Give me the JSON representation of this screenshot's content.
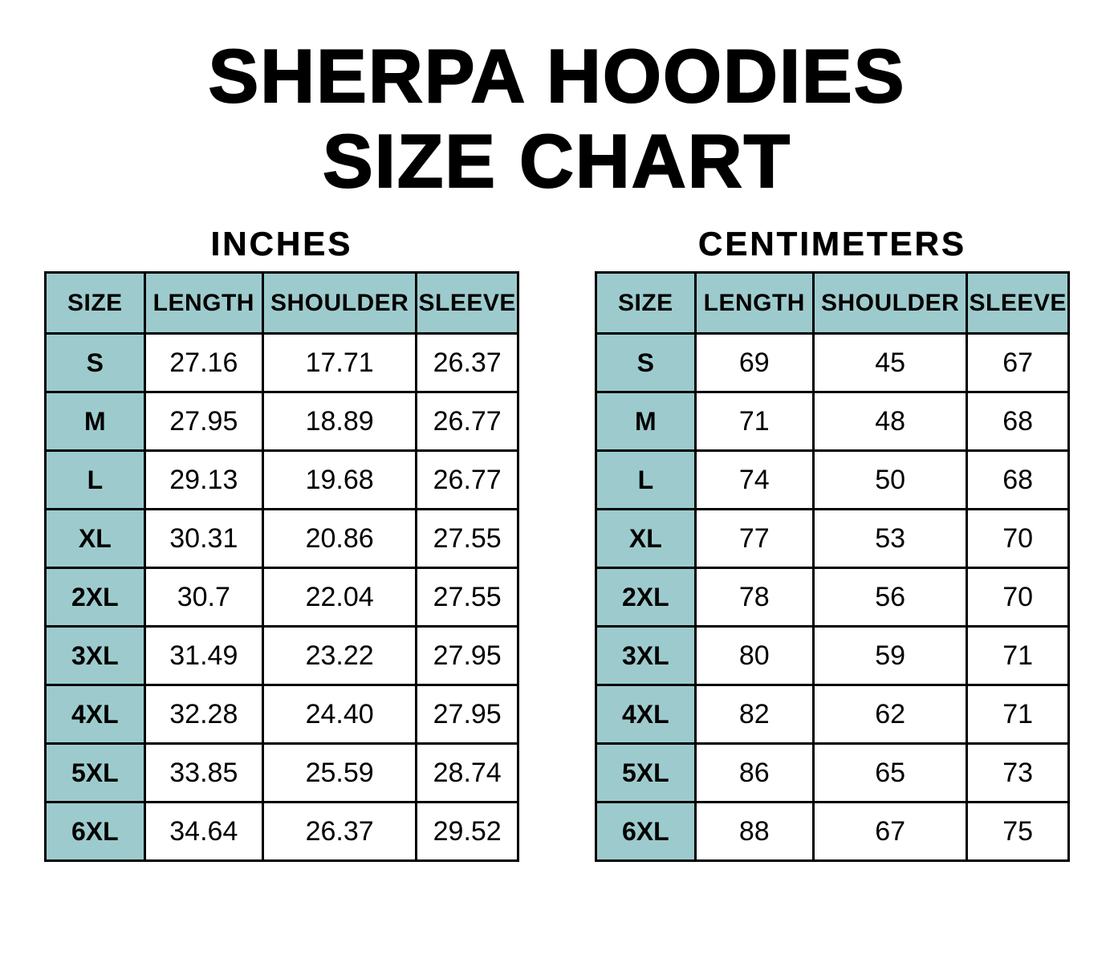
{
  "title": {
    "line1": "SHERPA HOODIES",
    "line2": "SIZE CHART"
  },
  "colors": {
    "accent_header_bg": "#9DCBCD",
    "border": "#000000",
    "text": "#000000",
    "background": "#FFFFFF"
  },
  "tables": [
    {
      "heading": "INCHES",
      "columns": [
        "SIZE",
        "LENGTH",
        "SHOULDER",
        "SLEEVE"
      ],
      "rows": [
        [
          "S",
          "27.16",
          "17.71",
          "26.37"
        ],
        [
          "M",
          "27.95",
          "18.89",
          "26.77"
        ],
        [
          "L",
          "29.13",
          "19.68",
          "26.77"
        ],
        [
          "XL",
          "30.31",
          "20.86",
          "27.55"
        ],
        [
          "2XL",
          "30.7",
          "22.04",
          "27.55"
        ],
        [
          "3XL",
          "31.49",
          "23.22",
          "27.95"
        ],
        [
          "4XL",
          "32.28",
          "24.40",
          "27.95"
        ],
        [
          "5XL",
          "33.85",
          "25.59",
          "28.74"
        ],
        [
          "6XL",
          "34.64",
          "26.37",
          "29.52"
        ]
      ]
    },
    {
      "heading": "CENTIMETERS",
      "columns": [
        "SIZE",
        "LENGTH",
        "SHOULDER",
        "SLEEVE"
      ],
      "rows": [
        [
          "S",
          "69",
          "45",
          "67"
        ],
        [
          "M",
          "71",
          "48",
          "68"
        ],
        [
          "L",
          "74",
          "50",
          "68"
        ],
        [
          "XL",
          "77",
          "53",
          "70"
        ],
        [
          "2XL",
          "78",
          "56",
          "70"
        ],
        [
          "3XL",
          "80",
          "59",
          "71"
        ],
        [
          "4XL",
          "82",
          "62",
          "71"
        ],
        [
          "5XL",
          "86",
          "65",
          "73"
        ],
        [
          "6XL",
          "88",
          "67",
          "75"
        ]
      ]
    }
  ]
}
